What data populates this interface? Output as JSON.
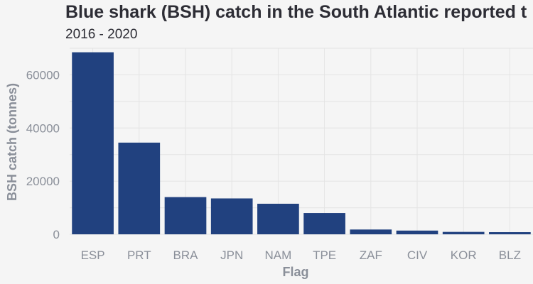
{
  "chart_data": {
    "type": "bar",
    "title": "Blue shark (BSH) catch in the South Atlantic reported t",
    "subtitle": "2016 - 2020",
    "xlabel": "Flag",
    "ylabel": "BSH catch (tonnes)",
    "categories": [
      "ESP",
      "PRT",
      "BRA",
      "JPN",
      "NAM",
      "TPE",
      "ZAF",
      "CIV",
      "KOR",
      "BLZ"
    ],
    "values": [
      68500,
      34500,
      14000,
      13500,
      11500,
      8000,
      1800,
      1400,
      900,
      800
    ],
    "ylim": [
      0,
      70000
    ],
    "yticks": [
      0,
      20000,
      40000,
      60000
    ],
    "grid": true,
    "legend": "none",
    "bar_color": "#21417f",
    "grid_color": "#e4e4e4",
    "background": "#f5f5f5"
  }
}
